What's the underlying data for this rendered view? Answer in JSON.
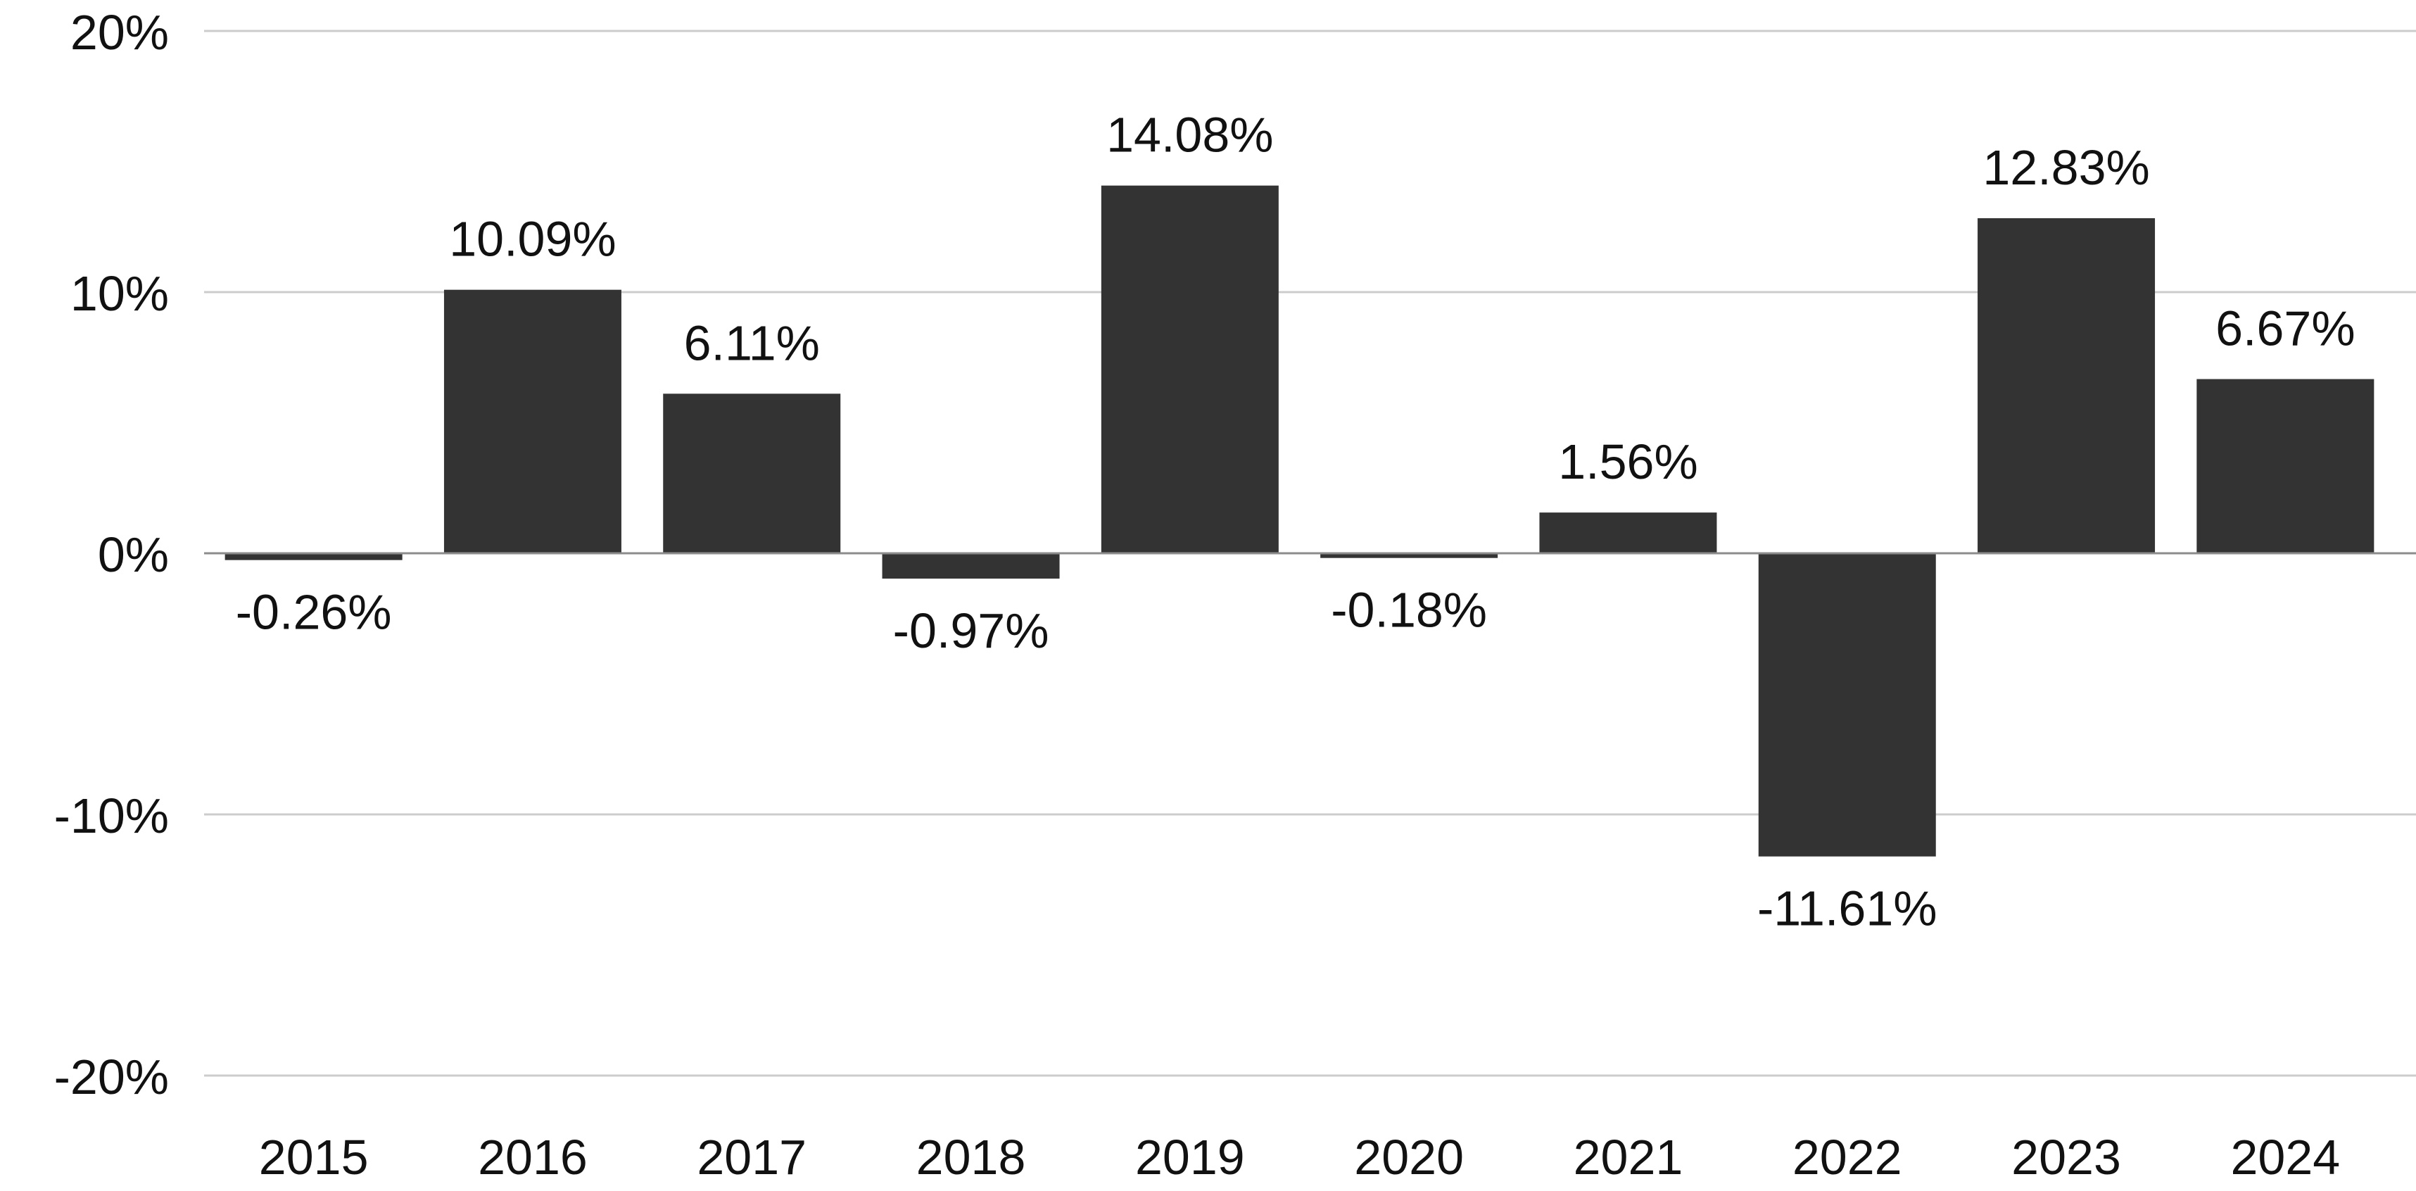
{
  "chart_data": {
    "type": "bar",
    "title": "",
    "xlabel": "",
    "ylabel": "",
    "categories": [
      "2015",
      "2016",
      "2017",
      "2018",
      "2019",
      "2020",
      "2021",
      "2022",
      "2023",
      "2024"
    ],
    "values": [
      -0.26,
      10.09,
      6.11,
      -0.97,
      14.08,
      -0.18,
      1.56,
      -11.61,
      12.83,
      6.67
    ],
    "data_labels": [
      "-0.26%",
      "10.09%",
      "6.11%",
      "-0.97%",
      "14.08%",
      "-0.18%",
      "1.56%",
      "-11.61%",
      "12.83%",
      "6.67%"
    ],
    "ylim": [
      -20,
      20
    ],
    "yticks": [
      20,
      10,
      0,
      -10,
      -20
    ],
    "ytick_labels": [
      "20%",
      "10%",
      "0%",
      "-10%",
      "-20%"
    ],
    "grid": true,
    "legend": "none",
    "colors": {
      "bar": "#333333",
      "grid": "#cccccc",
      "zero_line": "#8c8c8c",
      "text": "#111111"
    }
  }
}
